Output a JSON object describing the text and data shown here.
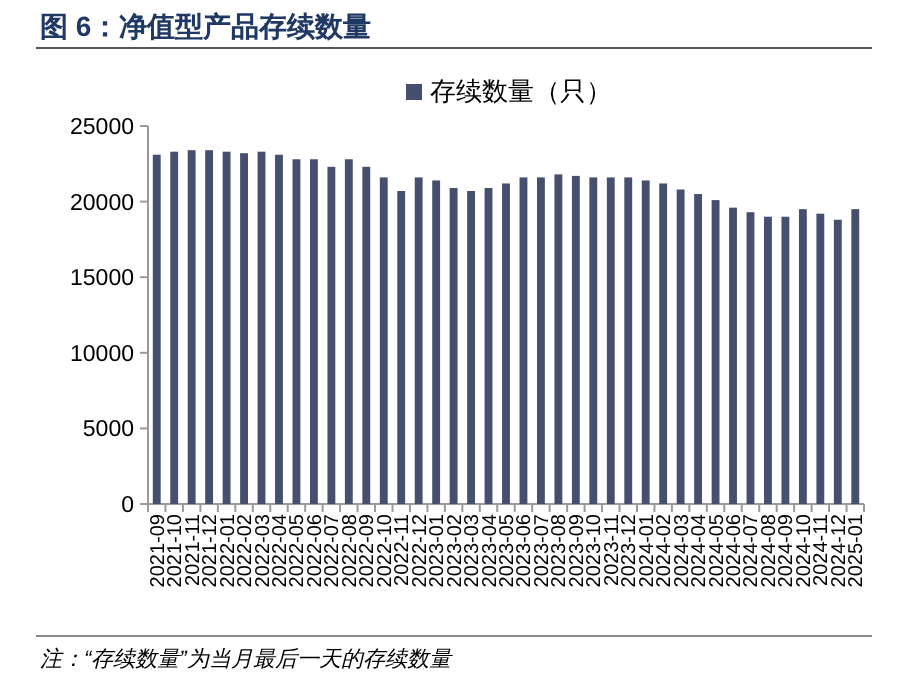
{
  "chart_data": {
    "type": "bar",
    "title": "图 6：净值型产品存续数量",
    "categories": [
      "2021-09",
      "2021-10",
      "2021-11",
      "2021-12",
      "2022-01",
      "2022-02",
      "2022-03",
      "2022-04",
      "2022-05",
      "2022-06",
      "2022-07",
      "2022-08",
      "2022-09",
      "2022-10",
      "2022-11",
      "2022-12",
      "2023-01",
      "2023-02",
      "2023-03",
      "2023-04",
      "2023-05",
      "2023-06",
      "2023-07",
      "2023-08",
      "2023-09",
      "2023-10",
      "2023-11",
      "2023-12",
      "2024-01",
      "2024-02",
      "2024-03",
      "2024-04",
      "2024-05",
      "2024-06",
      "2024-07",
      "2024-08",
      "2024-09",
      "2024-10",
      "2024-11",
      "2024-12",
      "2025-01"
    ],
    "series": [
      {
        "name": "存续数量（只）",
        "color": "#454f6e",
        "values": [
          23100,
          23300,
          23400,
          23400,
          23300,
          23200,
          23300,
          23100,
          22800,
          22800,
          22300,
          22800,
          22300,
          21600,
          20700,
          21600,
          21400,
          20900,
          20700,
          20900,
          21200,
          21600,
          21600,
          21800,
          21700,
          21600,
          21600,
          21600,
          21400,
          21200,
          20800,
          20500,
          20100,
          19600,
          19300,
          19000,
          19000,
          19500,
          19200,
          18800,
          19500
        ]
      }
    ],
    "ylim": [
      0,
      25000
    ],
    "yticks": [
      0,
      5000,
      10000,
      15000,
      20000,
      25000
    ],
    "grid": false,
    "legend": "top",
    "annotations": [
      "注：“存续数量”为当月最后一天的存续数量"
    ]
  }
}
